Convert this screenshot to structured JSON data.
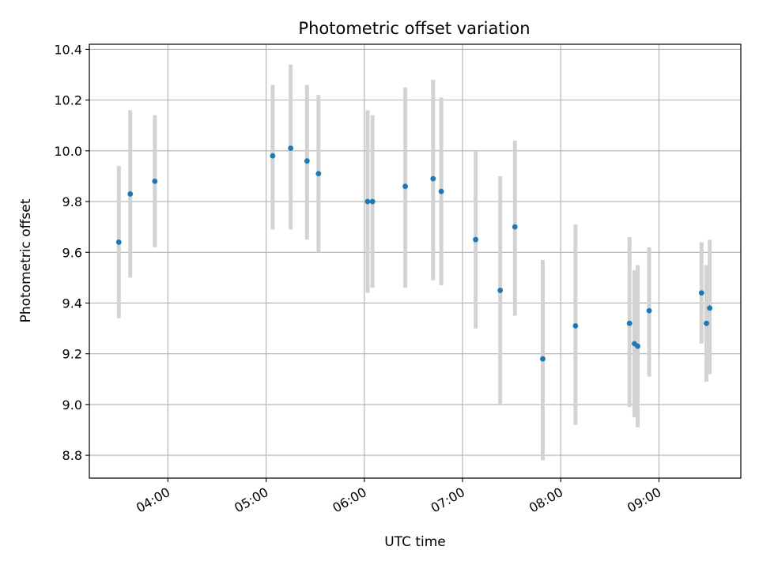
{
  "chart_data": {
    "type": "scatter",
    "title": "Photometric offset variation",
    "xlabel": "UTC time",
    "ylabel": "Photometric offset",
    "x_ticks": [
      "04:00",
      "05:00",
      "06:00",
      "07:00",
      "08:00",
      "09:00"
    ],
    "y_ticks": [
      "8.8",
      "9.0",
      "9.2",
      "9.4",
      "9.6",
      "9.8",
      "10.0",
      "10.2",
      "10.4"
    ],
    "xlim": [
      "03:12",
      "09:50"
    ],
    "ylim": [
      8.71,
      10.42
    ],
    "grid": true,
    "colors": {
      "points": "#1f77b4",
      "errorbars": "#d3d3d3",
      "grid": "#b0b0b0"
    },
    "series": [
      {
        "points": [
          {
            "x": "03:30",
            "y": 9.64,
            "ylo": 9.34,
            "yhi": 9.94
          },
          {
            "x": "03:37",
            "y": 9.83,
            "ylo": 9.5,
            "yhi": 10.16
          },
          {
            "x": "03:52",
            "y": 9.88,
            "ylo": 9.62,
            "yhi": 10.14
          },
          {
            "x": "05:04",
            "y": 9.98,
            "ylo": 9.69,
            "yhi": 10.26
          },
          {
            "x": "05:15",
            "y": 10.01,
            "ylo": 9.69,
            "yhi": 10.34
          },
          {
            "x": "05:25",
            "y": 9.96,
            "ylo": 9.65,
            "yhi": 10.26
          },
          {
            "x": "05:32",
            "y": 9.91,
            "ylo": 9.6,
            "yhi": 10.22
          },
          {
            "x": "06:02",
            "y": 9.8,
            "ylo": 9.44,
            "yhi": 10.16
          },
          {
            "x": "06:05",
            "y": 9.8,
            "ylo": 9.46,
            "yhi": 10.14
          },
          {
            "x": "06:25",
            "y": 9.86,
            "ylo": 9.46,
            "yhi": 10.25
          },
          {
            "x": "06:42",
            "y": 9.89,
            "ylo": 9.49,
            "yhi": 10.28
          },
          {
            "x": "06:47",
            "y": 9.84,
            "ylo": 9.47,
            "yhi": 10.21
          },
          {
            "x": "07:08",
            "y": 9.65,
            "ylo": 9.3,
            "yhi": 10.0
          },
          {
            "x": "07:23",
            "y": 9.45,
            "ylo": 9.0,
            "yhi": 9.9
          },
          {
            "x": "07:32",
            "y": 9.7,
            "ylo": 9.35,
            "yhi": 10.04
          },
          {
            "x": "07:49",
            "y": 9.18,
            "ylo": 8.78,
            "yhi": 9.57
          },
          {
            "x": "08:09",
            "y": 9.31,
            "ylo": 8.92,
            "yhi": 9.71
          },
          {
            "x": "08:42",
            "y": 9.32,
            "ylo": 8.99,
            "yhi": 9.66
          },
          {
            "x": "08:45",
            "y": 9.24,
            "ylo": 8.95,
            "yhi": 9.53
          },
          {
            "x": "08:47",
            "y": 9.23,
            "ylo": 8.91,
            "yhi": 9.55
          },
          {
            "x": "08:54",
            "y": 9.37,
            "ylo": 9.11,
            "yhi": 9.62
          },
          {
            "x": "09:26",
            "y": 9.44,
            "ylo": 9.24,
            "yhi": 9.64
          },
          {
            "x": "09:29",
            "y": 9.32,
            "ylo": 9.09,
            "yhi": 9.55
          },
          {
            "x": "09:31",
            "y": 9.38,
            "ylo": 9.12,
            "yhi": 9.65
          }
        ]
      }
    ]
  }
}
